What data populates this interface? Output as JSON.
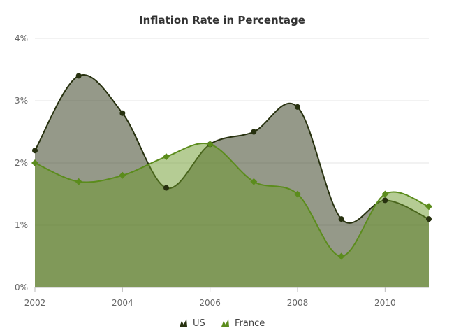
{
  "chart_data": {
    "type": "area",
    "title": "Inflation Rate in Percentage",
    "xlabel": "",
    "ylabel": "",
    "x": [
      2002,
      2003,
      2004,
      2005,
      2006,
      2007,
      2008,
      2009,
      2010,
      2011
    ],
    "xticks": [
      "2002",
      "2004",
      "2006",
      "2008",
      "2010"
    ],
    "yticks": [
      "0%",
      "1%",
      "2%",
      "3%",
      "4%"
    ],
    "ylim": [
      0,
      4
    ],
    "grid": true,
    "legend_position": "bottom",
    "series": [
      {
        "name": "US",
        "values": [
          2.2,
          3.4,
          2.8,
          1.6,
          2.3,
          2.5,
          2.9,
          1.1,
          1.4,
          1.1
        ],
        "stroke": "#27310f",
        "fill": "#2b3314",
        "marker": "circle"
      },
      {
        "name": "France",
        "values": [
          2.0,
          1.7,
          1.8,
          2.1,
          2.3,
          1.7,
          1.5,
          0.5,
          1.5,
          1.3
        ],
        "stroke": "#5b8c1c",
        "fill": "#6c9a2a",
        "marker": "diamond"
      }
    ]
  }
}
